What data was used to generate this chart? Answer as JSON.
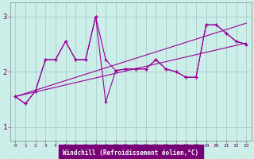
{
  "xlabel": "Windchill (Refroidissement éolien,°C)",
  "background_color": "#cceee8",
  "grid_color": "#b8ddd8",
  "line_color": "#990099",
  "x_ticks": [
    0,
    1,
    2,
    3,
    4,
    5,
    6,
    7,
    8,
    9,
    10,
    11,
    12,
    13,
    14,
    15,
    16,
    17,
    18,
    19,
    20,
    21,
    22,
    23
  ],
  "y_ticks": [
    1,
    2,
    3
  ],
  "ylim": [
    0.75,
    3.25
  ],
  "xlim": [
    -0.5,
    23.5
  ],
  "series": {
    "line1_x": [
      0,
      1,
      2,
      3,
      4,
      5,
      6,
      7,
      8,
      9,
      10,
      11,
      12,
      13,
      14,
      15,
      16,
      17,
      18,
      19,
      20,
      21,
      22,
      23
    ],
    "line1_y": [
      1.55,
      1.42,
      1.65,
      2.22,
      2.22,
      2.55,
      2.22,
      2.22,
      3.0,
      2.22,
      2.02,
      2.05,
      2.05,
      2.05,
      2.22,
      2.05,
      2.0,
      1.9,
      1.9,
      2.85,
      2.85,
      2.7,
      2.55,
      2.5
    ],
    "line2_x": [
      0,
      1,
      2,
      3,
      4,
      5,
      6,
      7,
      8,
      9,
      10,
      11,
      12,
      13,
      14,
      15,
      16,
      17,
      18,
      19,
      20,
      21,
      22,
      23
    ],
    "line2_y": [
      1.55,
      1.42,
      1.65,
      2.22,
      2.22,
      2.55,
      2.22,
      2.22,
      3.0,
      1.45,
      2.02,
      2.05,
      2.05,
      2.05,
      2.22,
      2.05,
      2.0,
      1.9,
      1.9,
      2.85,
      2.85,
      2.7,
      2.55,
      2.5
    ],
    "trend1_x": [
      0,
      23
    ],
    "trend1_y": [
      1.55,
      2.88
    ],
    "trend2_x": [
      0,
      23
    ],
    "trend2_y": [
      1.55,
      2.52
    ]
  }
}
